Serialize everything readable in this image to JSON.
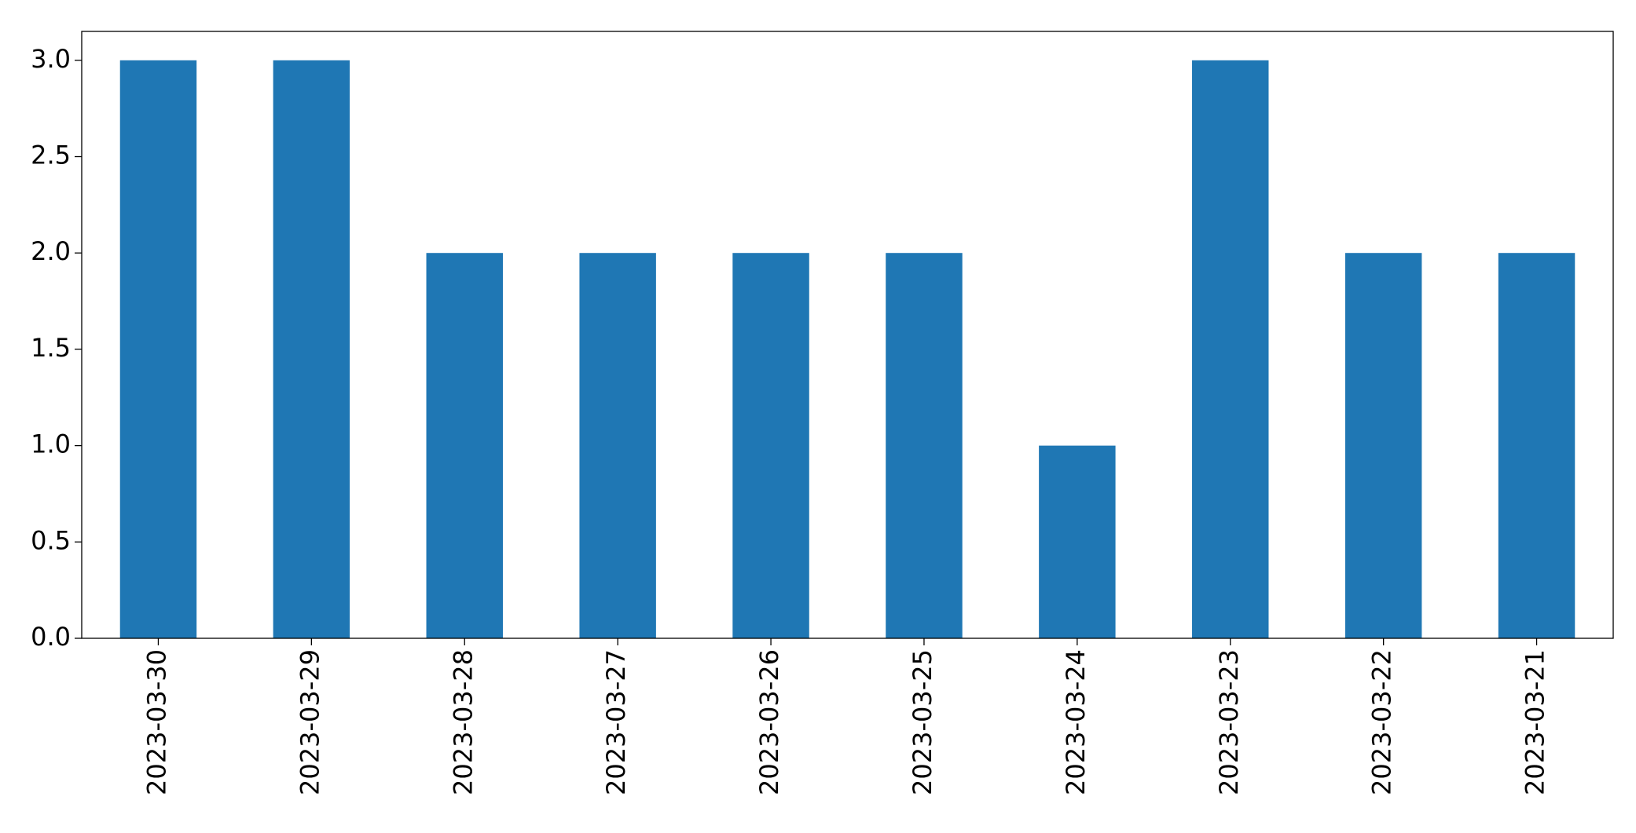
{
  "chart_data": {
    "type": "bar",
    "categories": [
      "2023-03-30",
      "2023-03-29",
      "2023-03-28",
      "2023-03-27",
      "2023-03-26",
      "2023-03-25",
      "2023-03-24",
      "2023-03-23",
      "2023-03-22",
      "2023-03-21"
    ],
    "values": [
      3,
      3,
      2,
      2,
      2,
      2,
      1,
      3,
      2,
      2
    ],
    "color": "#1f77b4",
    "ylim": [
      0,
      3.15
    ],
    "yticks": [
      {
        "value": 0,
        "label": "0.0"
      },
      {
        "value": 0.5,
        "label": "0.5"
      },
      {
        "value": 1,
        "label": "1.0"
      },
      {
        "value": 1.5,
        "label": "1.5"
      },
      {
        "value": 2,
        "label": "2.0"
      },
      {
        "value": 2.5,
        "label": "2.5"
      },
      {
        "value": 3,
        "label": "3.0"
      }
    ],
    "grid": false
  }
}
